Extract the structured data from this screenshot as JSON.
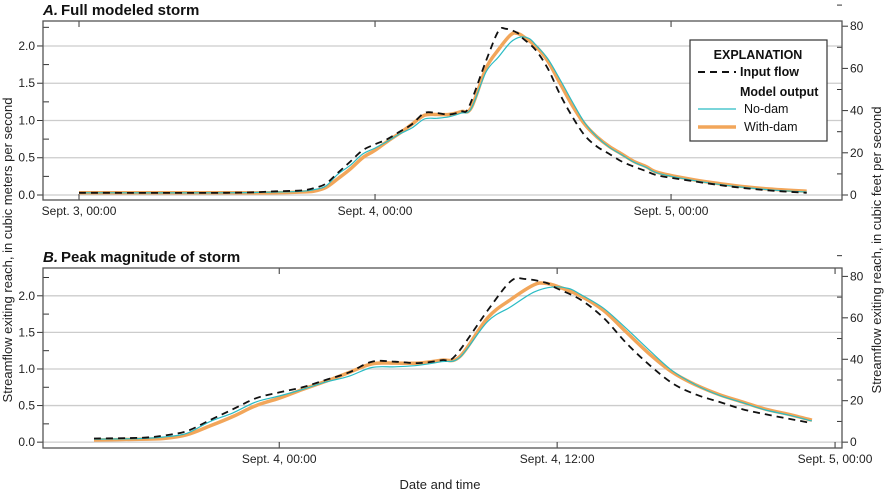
{
  "chart_data": {
    "type": "line",
    "x_units": "hours since Sept. 3, 00:00",
    "ylabel": "Streamflow exiting reach, in cubic meters per second",
    "ylabel_right": "Streamflow exiting reach, in cubic feet per second",
    "xlabel": "Date and time",
    "legend": {
      "title": "EXPLANATION",
      "placement": "top-right",
      "group_label": "Model output",
      "entries": [
        "Input flow",
        "No-dam",
        "With-dam"
      ]
    },
    "colors": {
      "input": "#111111",
      "nodam": "#2bbcc4",
      "withdam": "#f2a65a",
      "grid": "#cccccc"
    },
    "series": [
      {
        "name": "Input flow",
        "key": "input",
        "x": [
          0,
          12,
          16,
          18,
          19,
          20,
          21,
          22,
          23,
          24,
          25,
          26,
          27,
          28,
          29,
          30,
          31,
          31.6,
          33,
          34,
          34.6,
          35.5,
          36,
          37,
          38,
          39,
          40,
          41,
          42,
          43,
          44,
          45,
          46,
          47,
          50,
          53,
          56,
          59
        ],
        "values": [
          0.03,
          0.03,
          0.05,
          0.06,
          0.09,
          0.15,
          0.3,
          0.45,
          0.6,
          0.68,
          0.75,
          0.85,
          0.95,
          1.1,
          1.1,
          1.08,
          1.12,
          1.18,
          1.8,
          2.2,
          2.23,
          2.18,
          2.1,
          1.95,
          1.7,
          1.35,
          1.05,
          0.8,
          0.65,
          0.55,
          0.45,
          0.38,
          0.32,
          0.26,
          0.18,
          0.11,
          0.06,
          0.03
        ]
      },
      {
        "name": "No-dam",
        "key": "nodam",
        "x": [
          0,
          12,
          16,
          18,
          19,
          20,
          21,
          22,
          23,
          24,
          25,
          26,
          27,
          28,
          29,
          30,
          31,
          31.8,
          33,
          34,
          35,
          35.8,
          36.5,
          37,
          38,
          39,
          40,
          41,
          42,
          43,
          44,
          45,
          46,
          47,
          50,
          53,
          56,
          59
        ],
        "values": [
          0.03,
          0.03,
          0.04,
          0.05,
          0.07,
          0.12,
          0.28,
          0.4,
          0.55,
          0.63,
          0.72,
          0.82,
          0.9,
          1.02,
          1.03,
          1.05,
          1.1,
          1.16,
          1.65,
          1.85,
          2.05,
          2.12,
          2.1,
          2.02,
          1.83,
          1.55,
          1.25,
          0.97,
          0.78,
          0.64,
          0.54,
          0.44,
          0.37,
          0.29,
          0.19,
          0.12,
          0.07,
          0.04
        ]
      },
      {
        "name": "With-dam",
        "key": "withdam",
        "x": [
          0,
          12,
          16,
          18,
          19,
          20,
          21,
          22,
          23,
          24,
          25,
          26,
          27,
          28,
          29,
          30,
          31,
          31.8,
          33,
          34,
          35,
          35.5,
          36,
          37,
          38,
          39,
          40,
          41,
          42,
          43,
          44,
          45,
          46,
          47,
          50,
          53,
          56,
          59
        ],
        "values": [
          0.03,
          0.03,
          0.03,
          0.04,
          0.05,
          0.1,
          0.22,
          0.35,
          0.5,
          0.6,
          0.72,
          0.83,
          0.95,
          1.07,
          1.08,
          1.08,
          1.12,
          1.17,
          1.7,
          1.95,
          2.15,
          2.17,
          2.13,
          2.0,
          1.8,
          1.5,
          1.2,
          0.95,
          0.78,
          0.65,
          0.55,
          0.45,
          0.38,
          0.3,
          0.2,
          0.13,
          0.08,
          0.05
        ]
      }
    ],
    "panels": [
      {
        "label": "A.",
        "title": "Full modeled storm",
        "xlim": [
          -2.92,
          61.86
        ],
        "ylim": [
          -0.067,
          2.335
        ],
        "data_xrange": [
          0,
          59
        ],
        "yticks": [
          0.0,
          0.5,
          1.0,
          1.5,
          2.0
        ],
        "ytick_labels": [
          "0.0",
          "0.5",
          "1.0",
          "1.5",
          "2.0"
        ],
        "yticks_right_cfs": [
          0,
          20,
          40,
          60,
          80
        ],
        "ytick_right_labels": [
          "0",
          "20",
          "40",
          "60",
          "80"
        ],
        "xticks": [
          0,
          24,
          48
        ],
        "xtick_labels": [
          "Sept. 3, 00:00",
          "Sept. 4, 00:00",
          "Sept. 5, 00:00"
        ]
      },
      {
        "label": "B.",
        "title": "Peak magnitude of storm",
        "xlim": [
          13.8,
          48.3
        ],
        "ylim": [
          -0.08,
          2.38
        ],
        "data_xrange": [
          16,
          47
        ],
        "yticks": [
          0.0,
          0.5,
          1.0,
          1.5,
          2.0
        ],
        "ytick_labels": [
          "0.0",
          "0.5",
          "1.0",
          "1.5",
          "2.0"
        ],
        "yticks_right_cfs": [
          0,
          20,
          40,
          60,
          80
        ],
        "ytick_right_labels": [
          "0",
          "20",
          "40",
          "60",
          "80"
        ],
        "xticks": [
          24,
          36,
          48
        ],
        "xtick_labels": [
          "Sept. 4, 00:00",
          "Sept. 4, 12:00",
          "Sept. 5, 00:00"
        ]
      }
    ]
  }
}
